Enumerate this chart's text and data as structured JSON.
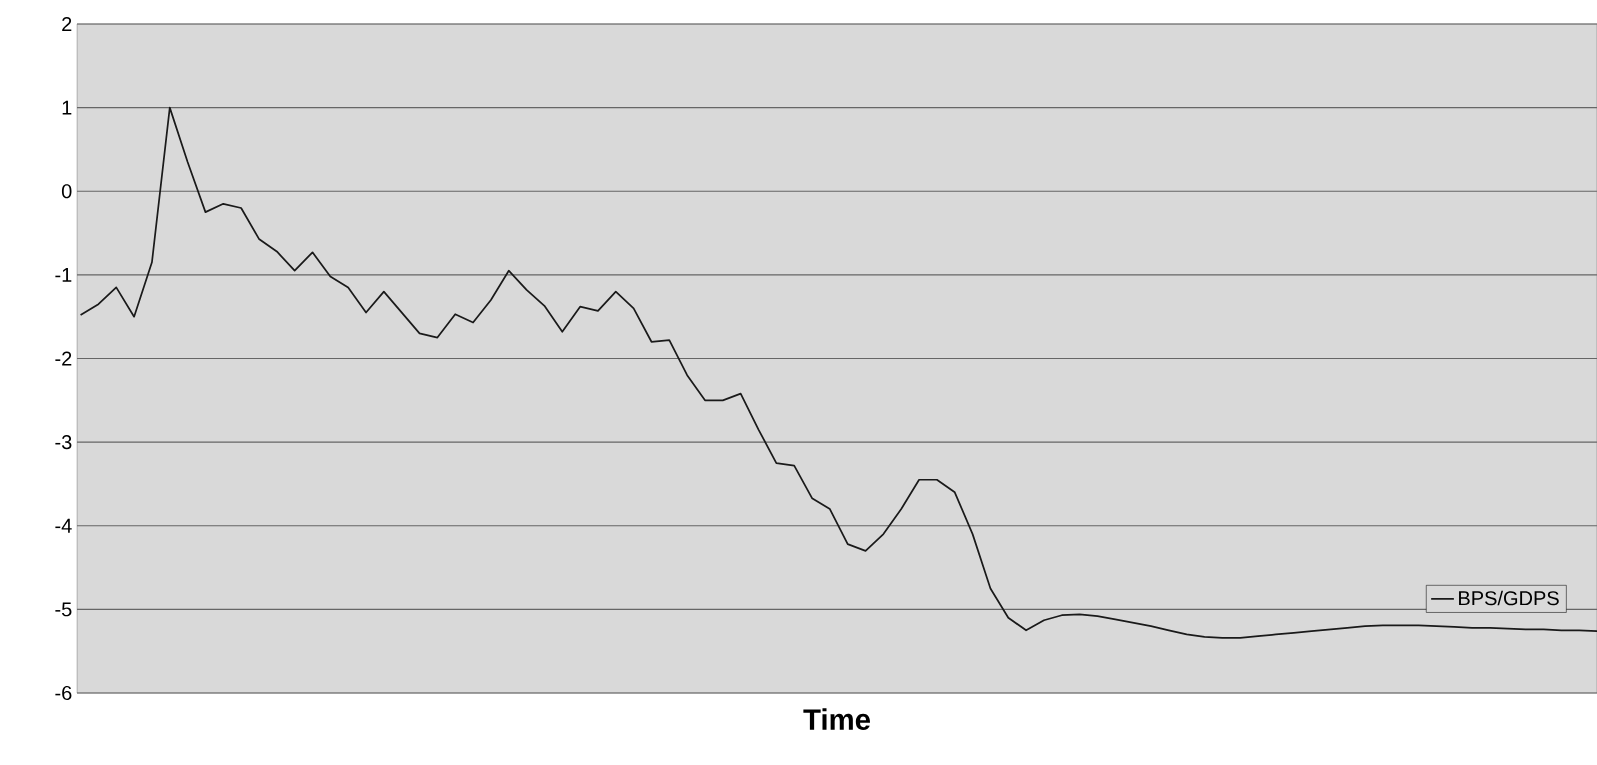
{
  "chart_data": {
    "type": "line",
    "xlabel": "Time",
    "categories": [
      null,
      null,
      null,
      null,
      null,
      null,
      null,
      null,
      null,
      null,
      null,
      null,
      null,
      null,
      null,
      null,
      null,
      null,
      null,
      null,
      null,
      null,
      null,
      null,
      null,
      null,
      null,
      null,
      null,
      null,
      null,
      null,
      null,
      null,
      null,
      null,
      null,
      null,
      null,
      null,
      null,
      null,
      null,
      null,
      null,
      null,
      null,
      null,
      null,
      null,
      null,
      null,
      null,
      null,
      null,
      null,
      null,
      null,
      null,
      null,
      null,
      null,
      null,
      null,
      null,
      null,
      null,
      null,
      null,
      null,
      null,
      null,
      null,
      null,
      null,
      null,
      null,
      null,
      null,
      null,
      null,
      null,
      null,
      null,
      null,
      null
    ],
    "series": [
      {
        "name": "BPS/GDPS",
        "color": "#1a1a1a",
        "values": [
          -1.48,
          -1.35,
          -1.15,
          -1.5,
          -0.85,
          1.0,
          0.35,
          -0.25,
          -0.15,
          -0.2,
          -0.57,
          -0.72,
          -0.95,
          -0.73,
          -1.02,
          -1.15,
          -1.45,
          -1.2,
          -1.45,
          -1.7,
          -1.75,
          -1.47,
          -1.57,
          -1.3,
          -0.95,
          -1.18,
          -1.37,
          -1.68,
          -1.38,
          -1.43,
          -1.2,
          -1.4,
          -1.8,
          -1.78,
          -2.2,
          -2.5,
          -2.5,
          -2.42,
          -2.85,
          -3.25,
          -3.28,
          -3.67,
          -3.8,
          -4.22,
          -4.3,
          -4.1,
          -3.8,
          -3.45,
          -3.45,
          -3.6,
          -4.1,
          -4.75,
          -5.1,
          -5.25,
          -5.13,
          -5.07,
          -5.06,
          -5.08,
          -5.12,
          -5.16,
          -5.2,
          -5.25,
          -5.3,
          -5.33,
          -5.34,
          -5.34,
          -5.32,
          -5.3,
          -5.28,
          -5.26,
          -5.24,
          -5.22,
          -5.2,
          -5.19,
          -5.19,
          -5.19,
          -5.2,
          -5.21,
          -5.22,
          -5.22,
          -5.23,
          -5.24,
          -5.24,
          -5.25,
          -5.25,
          -5.26
        ]
      }
    ],
    "ylim": [
      -6,
      2
    ],
    "yticks": [
      -6,
      -5,
      -4,
      -3,
      -2,
      -1,
      0,
      1,
      2
    ],
    "grid": "y",
    "legend": "bottom right",
    "tick_labels": "y",
    "marker": "none",
    "line_style": "solid"
  }
}
